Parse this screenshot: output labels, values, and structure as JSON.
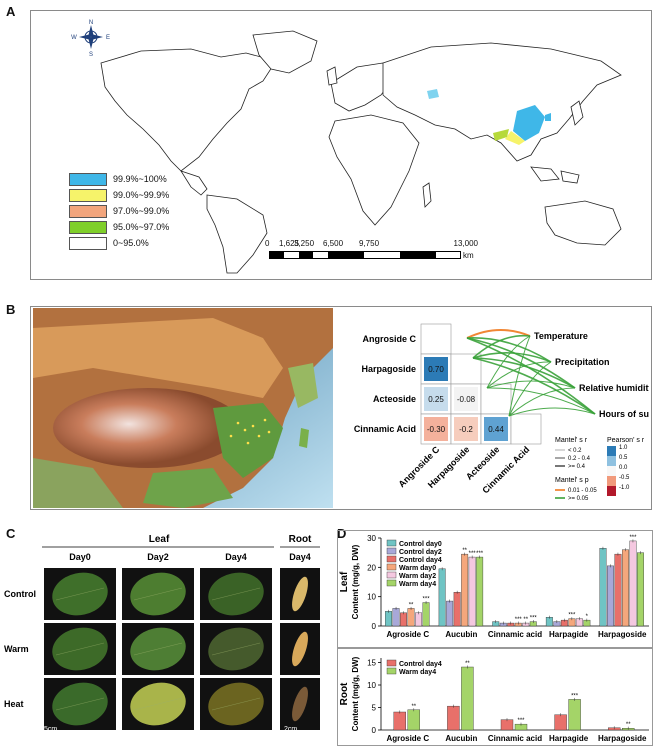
{
  "panelA": {
    "label": "A",
    "legend": [
      {
        "text": "99.9%~100%",
        "color": "#3fb7e8"
      },
      {
        "text": "99.0%~99.9%",
        "color": "#f6f36a"
      },
      {
        "text": "97.0%~99.0%",
        "color": "#f2a57d"
      },
      {
        "text": "95.0%~97.0%",
        "color": "#7fcf2a"
      },
      {
        "text": "0~95.0%",
        "color": "#ffffff"
      }
    ],
    "scale_ticks": [
      "0",
      "1,625",
      "3,250",
      "6,500",
      "9,750",
      "13,000"
    ],
    "scale_unit": "km",
    "compass": {
      "n": "N",
      "s": "S",
      "e": "E",
      "w": "W"
    }
  },
  "panelB": {
    "label": "B",
    "row_labels": [
      "Angroside C",
      "Harpagoside",
      "Acteoside",
      "Cinnamic Acid"
    ],
    "col_labels": [
      "Angroside C",
      "Harpagoside",
      "Acteoside",
      "Cinnamic Acid"
    ],
    "cells": [
      {
        "row": 1,
        "col": 0,
        "value": "0.70",
        "color": "#2c7bb6"
      },
      {
        "row": 2,
        "col": 0,
        "value": "0.25",
        "color": "#c6dcec"
      },
      {
        "row": 2,
        "col": 1,
        "value": "-0.08",
        "color": "#f3f3f3"
      },
      {
        "row": 3,
        "col": 0,
        "value": "-0.30",
        "color": "#f4b19c"
      },
      {
        "row": 3,
        "col": 1,
        "value": "-0.2",
        "color": "#f6cdbd"
      },
      {
        "row": 3,
        "col": 2,
        "value": "0.44",
        "color": "#5fa2d2"
      }
    ],
    "env_vars": [
      "Temperature",
      "Precipitation",
      "Relative humidity",
      "Hours of sunlight"
    ],
    "mantel_r_title": "Mantel' s r",
    "mantel_r_items": [
      "< 0.2",
      "0.2 - 0.4",
      ">= 0.4"
    ],
    "mantel_p_title": "Mantel' s p",
    "mantel_p_items": [
      {
        "text": "0.01 - 0.05",
        "color": "#f07a1f"
      },
      {
        "text": ">= 0.05",
        "color": "#3aa23a"
      }
    ],
    "pearson_title": "Pearson' s r",
    "pearson_ticks": [
      "1.0",
      "0.5",
      "0.0",
      "-0.5",
      "-1.0"
    ]
  },
  "panelC": {
    "label": "C",
    "group_leaf": "Leaf",
    "group_root": "Root",
    "col_headers": [
      "Day0",
      "Day2",
      "Day4",
      "Day4"
    ],
    "row_headers": [
      "Control",
      "Warm",
      "Heat"
    ],
    "scale_leaf": "5cm",
    "scale_root": "2cm"
  },
  "panelD": {
    "label": "D",
    "leaf": {
      "row_title": "Leaf",
      "ylabel": "Content (mg/g, DW)",
      "ylim": [
        0,
        30
      ],
      "yticks": [
        "0",
        "10",
        "20",
        "30"
      ],
      "legend": [
        "Control day0",
        "Control day2",
        "Control day4",
        "Warm day0",
        "Warm day2",
        "Warm day4"
      ],
      "colors": [
        "#6fc4c4",
        "#a8a8d8",
        "#e8706a",
        "#f5a77c",
        "#f4c8e0",
        "#a4d468"
      ],
      "categories": [
        "Agroside C",
        "Aucubin",
        "Cinnamic acid",
        "Harpagide",
        "Harpagoside"
      ],
      "series": [
        {
          "name": "Control day0",
          "values": [
            5,
            19.5,
            1.5,
            3,
            26.5
          ]
        },
        {
          "name": "Control day2",
          "values": [
            6,
            8.5,
            1,
            1.5,
            20.5
          ]
        },
        {
          "name": "Control day4",
          "values": [
            4.5,
            11.5,
            1,
            2,
            24.5
          ]
        },
        {
          "name": "Warm day0",
          "values": [
            6,
            24.5,
            1,
            2.5,
            26
          ]
        },
        {
          "name": "Warm day2",
          "values": [
            4.5,
            23.5,
            1,
            2.5,
            29
          ]
        },
        {
          "name": "Warm day4",
          "values": [
            8,
            23.5,
            1.5,
            2,
            25
          ]
        }
      ],
      "sig": [
        {
          "cat": 0,
          "bar": 3,
          "text": "**"
        },
        {
          "cat": 0,
          "bar": 5,
          "text": "***"
        },
        {
          "cat": 1,
          "bar": 3,
          "text": "**"
        },
        {
          "cat": 1,
          "bar": 4,
          "text": "***"
        },
        {
          "cat": 1,
          "bar": 5,
          "text": "***"
        },
        {
          "cat": 2,
          "bar": 3,
          "text": "***"
        },
        {
          "cat": 2,
          "bar": 4,
          "text": "**"
        },
        {
          "cat": 2,
          "bar": 5,
          "text": "***"
        },
        {
          "cat": 3,
          "bar": 3,
          "text": "***"
        },
        {
          "cat": 3,
          "bar": 5,
          "text": "*"
        },
        {
          "cat": 4,
          "bar": 4,
          "text": "***"
        }
      ]
    },
    "root": {
      "row_title": "Root",
      "ylabel": "Content (mg/g, DW)",
      "ylim": [
        0,
        16
      ],
      "yticks": [
        "0",
        "5",
        "10",
        "15"
      ],
      "legend": [
        "Control day4",
        "Warm day4"
      ],
      "colors": [
        "#e8706a",
        "#a4d468"
      ],
      "categories": [
        "Agroside C",
        "Aucubin",
        "Cinnamic acid",
        "Harpagide",
        "Harpagoside"
      ],
      "series": [
        {
          "name": "Control day4",
          "values": [
            4,
            5.3,
            2.3,
            3.4,
            0.5
          ]
        },
        {
          "name": "Warm day4",
          "values": [
            4.5,
            14,
            1.3,
            6.8,
            0.4
          ]
        }
      ],
      "sig": [
        {
          "cat": 0,
          "bar": 1,
          "text": "**"
        },
        {
          "cat": 1,
          "bar": 1,
          "text": "**"
        },
        {
          "cat": 2,
          "bar": 1,
          "text": "***"
        },
        {
          "cat": 3,
          "bar": 1,
          "text": "***"
        },
        {
          "cat": 4,
          "bar": 1,
          "text": "**"
        }
      ]
    }
  }
}
